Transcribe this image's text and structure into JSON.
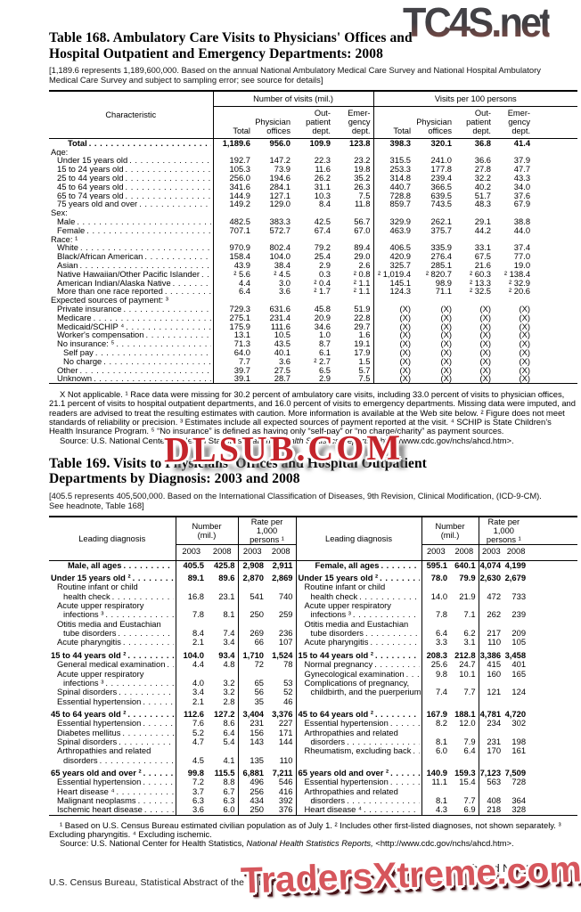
{
  "watermarks": {
    "top": "TC4S.net",
    "middle": "DLSUB.COM",
    "bottom": "TradersXtreme.com"
  },
  "colors": {
    "watermark_top_dark": "#3f3e42",
    "watermark_top_red": "#8a5a50",
    "watermark_mid": "#c4242b",
    "watermark_bottom": "#d6565c",
    "text": "#000000",
    "rule": "#000000"
  },
  "table168": {
    "title_line1": "Table 168. Ambulatory Care Visits to Physicians' Offices and",
    "title_line2": "Hospital Outpatient and Emergency Departments: 2008",
    "headnote": "[1,189.6 represents 1,189,600,000. Based on the annual National Ambulatory Medical Care Survey and National Hospital Ambulatory Medical Care Survey and subject to sampling error; see source for details]",
    "header": {
      "characteristic": "Characteristic",
      "group1": "Number of visits (mil.)",
      "group2": "Visits per 100 persons",
      "subcols": [
        "Total",
        "Physician\noffices",
        "Out-\npatient\ndept.",
        "Emer-\ngency\ndept."
      ]
    },
    "rows": [
      {
        "label": "Total",
        "indent": 3,
        "bold": true,
        "values": [
          "1,189.6",
          "956.0",
          "109.9",
          "123.8",
          "398.3",
          "320.1",
          "36.8",
          "41.4"
        ]
      },
      {
        "label": "Age:",
        "indent": 0,
        "section": true,
        "values": []
      },
      {
        "label": "Under 15 years old",
        "indent": 1,
        "values": [
          "192.7",
          "147.2",
          "22.3",
          "23.2",
          "315.5",
          "241.0",
          "36.6",
          "37.9"
        ]
      },
      {
        "label": "15 to 24 years old",
        "indent": 1,
        "values": [
          "105.3",
          "73.9",
          "11.6",
          "19.8",
          "253.3",
          "177.8",
          "27.8",
          "47.7"
        ]
      },
      {
        "label": "25 to 44 years old",
        "indent": 1,
        "values": [
          "256.0",
          "194.6",
          "26.2",
          "35.2",
          "314.8",
          "239.4",
          "32.2",
          "43.3"
        ]
      },
      {
        "label": "45 to 64 years old",
        "indent": 1,
        "values": [
          "341.6",
          "284.1",
          "31.1",
          "26.3",
          "440.7",
          "366.5",
          "40.2",
          "34.0"
        ]
      },
      {
        "label": "65 to 74 years old",
        "indent": 1,
        "values": [
          "144.9",
          "127.1",
          "10.3",
          "7.5",
          "728.8",
          "639.5",
          "51.7",
          "37.6"
        ]
      },
      {
        "label": "75 years old and over",
        "indent": 1,
        "values": [
          "149.2",
          "129.0",
          "8.4",
          "11.8",
          "859.7",
          "743.5",
          "48.3",
          "67.9"
        ]
      },
      {
        "label": "Sex:",
        "indent": 0,
        "section": true,
        "values": []
      },
      {
        "label": "Male",
        "indent": 1,
        "values": [
          "482.5",
          "383.3",
          "42.5",
          "56.7",
          "329.9",
          "262.1",
          "29.1",
          "38.8"
        ]
      },
      {
        "label": "Female",
        "indent": 1,
        "values": [
          "707.1",
          "572.7",
          "67.4",
          "67.0",
          "463.9",
          "375.7",
          "44.2",
          "44.0"
        ]
      },
      {
        "label": "Race: ¹",
        "indent": 0,
        "section": true,
        "values": []
      },
      {
        "label": "White",
        "indent": 1,
        "values": [
          "970.9",
          "802.4",
          "79.2",
          "89.4",
          "406.5",
          "335.9",
          "33.1",
          "37.4"
        ]
      },
      {
        "label": "Black/African American",
        "indent": 1,
        "values": [
          "158.4",
          "104.0",
          "25.4",
          "29.0",
          "420.9",
          "276.4",
          "67.5",
          "77.0"
        ]
      },
      {
        "label": "Asian",
        "indent": 1,
        "values": [
          "43.9",
          "38.4",
          "2.9",
          "2.6",
          "325.7",
          "285.1",
          "21.6",
          "19.0"
        ]
      },
      {
        "label": "Native Hawaiian/Other Pacific Islander",
        "indent": 1,
        "values": [
          "² 5.6",
          "² 4.5",
          "0.3",
          "² 0.8",
          "² 1,019.4",
          "² 820.7",
          "² 60.3",
          "² 138.4"
        ]
      },
      {
        "label": "American Indian/Alaska Native",
        "indent": 1,
        "values": [
          "4.4",
          "3.0",
          "² 0.4",
          "² 1.1",
          "145.1",
          "98.9",
          "² 13.3",
          "² 32.9"
        ]
      },
      {
        "label": "More than one race reported",
        "indent": 1,
        "values": [
          "6.4",
          "3.6",
          "² 1.7",
          "² 1.1",
          "124.3",
          "71.1",
          "² 32.5",
          "² 20.6"
        ]
      },
      {
        "label": "Expected sources of payment: ³",
        "indent": 0,
        "section": true,
        "values": []
      },
      {
        "label": "Private insurance",
        "indent": 1,
        "values": [
          "729.3",
          "631.6",
          "45.8",
          "51.9",
          "(X)",
          "(X)",
          "(X)",
          "(X)"
        ]
      },
      {
        "label": "Medicare",
        "indent": 1,
        "values": [
          "275.1",
          "231.4",
          "20.9",
          "22.8",
          "(X)",
          "(X)",
          "(X)",
          "(X)"
        ]
      },
      {
        "label": "Medicaid/SCHIP ⁴",
        "indent": 1,
        "values": [
          "175.9",
          "111.6",
          "34.6",
          "29.7",
          "(X)",
          "(X)",
          "(X)",
          "(X)"
        ]
      },
      {
        "label": "Worker's compensation",
        "indent": 1,
        "values": [
          "13.1",
          "10.5",
          "1.0",
          "1.6",
          "(X)",
          "(X)",
          "(X)",
          "(X)"
        ]
      },
      {
        "label": "No insurance: ⁵",
        "indent": 1,
        "values": [
          "71.3",
          "43.5",
          "8.7",
          "19.1",
          "(X)",
          "(X)",
          "(X)",
          "(X)"
        ]
      },
      {
        "label": "Self pay",
        "indent": 2,
        "values": [
          "64.0",
          "40.1",
          "6.1",
          "17.9",
          "(X)",
          "(X)",
          "(X)",
          "(X)"
        ]
      },
      {
        "label": "No charge",
        "indent": 2,
        "values": [
          "7.7",
          "3.6",
          "² 2.7",
          "1.5",
          "(X)",
          "(X)",
          "(X)",
          "(X)"
        ]
      },
      {
        "label": "Other",
        "indent": 1,
        "values": [
          "39.7",
          "27.5",
          "6.5",
          "5.7",
          "(X)",
          "(X)",
          "(X)",
          "(X)"
        ]
      },
      {
        "label": "Unknown",
        "indent": 1,
        "values": [
          "39.1",
          "28.7",
          "2.9",
          "7.5",
          "(X)",
          "(X)",
          "(X)",
          "(X)"
        ]
      }
    ],
    "footnote": "X Not applicable. ¹ Race data were missing for 30.2 percent of ambulatory care visits, including 33.0 percent of visits to physician offices, 21.1 percent of visits to hospital outpatient departments, and 16.0 percent of visits to emergency departments. Missing data were imputed, and readers are advised to treat the resulting estimates with caution. More information is available at the Web site below. ² Figure does not meet standards of reliability or precision. ³ Estimates include all expected sources of payment reported at the visit. ⁴ SCHIP is State Children’s Health Insurance Program. ⁵ “No insurance” is defined as having only “self-pay” or “no charge/charity” as payment sources.",
    "source_prefix": "Source: U.S. National Center for Health Statistics, ",
    "source_italic": "National Health Statistics Reports,",
    "source_suffix": " <http://www.cdc.gov/nchs/ahcd.htm>."
  },
  "table169": {
    "title_line1": "Table 169. Visits to Physicians' Offices and Hospital Outpatient",
    "title_line2": "Departments by Diagnosis: 2003 and 2008",
    "headnote": "[405.5 represents 405,500,000. Based on the International Classification of Diseases, 9th Revision, Clinical Modification, (ICD-9-CM). See headnote, Table 168]",
    "header": {
      "leading": "Leading diagnosis",
      "number": "Number\n(mil.)",
      "rate": "Rate per\n1,000\npersons ¹",
      "years": [
        "2003",
        "2008"
      ]
    },
    "rows": [
      {
        "l": {
          "t": "Male, all ages",
          "i": 3,
          "b": 1,
          "v": [
            "405.5",
            "425.8",
            "2,908",
            "2,911"
          ]
        },
        "r": {
          "t": "Female, all ages",
          "i": 3,
          "b": 1,
          "v": [
            "595.1",
            "640.1",
            "4,074",
            "4,199"
          ]
        }
      },
      {
        "gap": 1,
        "l": {
          "t": "Under 15 years old ²",
          "i": 0,
          "b": 1,
          "v": [
            "89.1",
            "89.6",
            "2,870",
            "2,869"
          ]
        },
        "r": {
          "t": "Under 15 years old ²",
          "i": 0,
          "b": 1,
          "v": [
            "78.0",
            "79.9",
            "2,630",
            "2,679"
          ]
        }
      },
      {
        "l": {
          "t": "Routine infant or child",
          "i": 1,
          "v": []
        },
        "r": {
          "t": "Routine infant or child",
          "i": 1,
          "v": []
        }
      },
      {
        "l": {
          "t": "health check",
          "i": 2,
          "v": [
            "16.8",
            "23.1",
            "541",
            "740"
          ]
        },
        "r": {
          "t": "health check",
          "i": 2,
          "v": [
            "14.0",
            "21.9",
            "472",
            "733"
          ]
        }
      },
      {
        "l": {
          "t": "Acute upper respiratory",
          "i": 1,
          "v": []
        },
        "r": {
          "t": "Acute upper respiratory",
          "i": 1,
          "v": []
        }
      },
      {
        "l": {
          "t": "infections ³",
          "i": 2,
          "v": [
            "7.8",
            "8.1",
            "250",
            "259"
          ]
        },
        "r": {
          "t": "infections ³",
          "i": 2,
          "v": [
            "7.8",
            "7.1",
            "262",
            "239"
          ]
        }
      },
      {
        "l": {
          "t": "Otitis media and Eustachian",
          "i": 1,
          "v": []
        },
        "r": {
          "t": "Otitis media and Eustachian",
          "i": 1,
          "v": []
        }
      },
      {
        "l": {
          "t": "tube disorders",
          "i": 2,
          "v": [
            "8.4",
            "7.4",
            "269",
            "236"
          ]
        },
        "r": {
          "t": "tube disorders",
          "i": 2,
          "v": [
            "6.4",
            "6.2",
            "217",
            "209"
          ]
        }
      },
      {
        "l": {
          "t": "Acute pharyngitis",
          "i": 1,
          "v": [
            "2.1",
            "3.4",
            "66",
            "107"
          ]
        },
        "r": {
          "t": "Acute pharyngitis",
          "i": 1,
          "v": [
            "3.3",
            "3.1",
            "110",
            "105"
          ]
        }
      },
      {
        "gap": 1,
        "l": {
          "t": "15 to 44 years old ²",
          "i": 0,
          "b": 1,
          "v": [
            "104.0",
            "93.4",
            "1,710",
            "1,524"
          ]
        },
        "r": {
          "t": "15 to 44 years old ²",
          "i": 0,
          "b": 1,
          "v": [
            "208.3",
            "212.8",
            "3,386",
            "3,458"
          ]
        }
      },
      {
        "l": {
          "t": "General medical examination",
          "i": 1,
          "v": [
            "4.4",
            "4.8",
            "72",
            "78"
          ]
        },
        "r": {
          "t": "Normal pregnancy",
          "i": 1,
          "v": [
            "25.6",
            "24.7",
            "415",
            "401"
          ]
        }
      },
      {
        "l": {
          "t": "Acute upper respiratory",
          "i": 1,
          "v": []
        },
        "r": {
          "t": "Gynecological examination",
          "i": 1,
          "v": [
            "9.8",
            "10.1",
            "160",
            "165"
          ]
        }
      },
      {
        "l": {
          "t": "infections ³",
          "i": 2,
          "v": [
            "4.0",
            "3.2",
            "65",
            "53"
          ]
        },
        "r": {
          "t": "Complications of pregnancy,",
          "i": 1,
          "v": []
        }
      },
      {
        "l": {
          "t": "Spinal disorders",
          "i": 1,
          "v": [
            "3.4",
            "3.2",
            "56",
            "52"
          ]
        },
        "r": {
          "t": "childbirth, and the puerperium",
          "i": 2,
          "v": [
            "7.4",
            "7.7",
            "121",
            "124"
          ]
        }
      },
      {
        "l": {
          "t": "Essential hypertension",
          "i": 1,
          "v": [
            "2.1",
            "2.8",
            "35",
            "46"
          ]
        },
        "r": {
          "t": "",
          "i": 1,
          "v": []
        }
      },
      {
        "gap": 1,
        "l": {
          "t": "45 to 64 years old ²",
          "i": 0,
          "b": 1,
          "v": [
            "112.6",
            "127.2",
            "3,404",
            "3,376"
          ]
        },
        "r": {
          "t": "45 to 64 years old ²",
          "i": 0,
          "b": 1,
          "v": [
            "167.9",
            "188.1",
            "4,781",
            "4,720"
          ]
        }
      },
      {
        "l": {
          "t": "Essential hypertension",
          "i": 1,
          "v": [
            "7.6",
            "8.6",
            "231",
            "227"
          ]
        },
        "r": {
          "t": "Essential hypertension",
          "i": 1,
          "v": [
            "8.2",
            "12.0",
            "234",
            "302"
          ]
        }
      },
      {
        "l": {
          "t": "Diabetes mellitus",
          "i": 1,
          "v": [
            "5.2",
            "6.4",
            "156",
            "171"
          ]
        },
        "r": {
          "t": "Arthropathies and related",
          "i": 1,
          "v": []
        }
      },
      {
        "l": {
          "t": "Spinal disorders",
          "i": 1,
          "v": [
            "4.7",
            "5.4",
            "143",
            "144"
          ]
        },
        "r": {
          "t": "disorders",
          "i": 2,
          "v": [
            "8.1",
            "7.9",
            "231",
            "198"
          ]
        }
      },
      {
        "l": {
          "t": "Arthropathies and related",
          "i": 1,
          "v": []
        },
        "r": {
          "t": "Rheumatism, excluding back",
          "i": 1,
          "v": [
            "6.0",
            "6.4",
            "170",
            "161"
          ]
        }
      },
      {
        "l": {
          "t": "disorders",
          "i": 2,
          "v": [
            "4.5",
            "4.1",
            "135",
            "110"
          ]
        },
        "r": {
          "t": "",
          "i": 1,
          "v": []
        }
      },
      {
        "gap": 1,
        "l": {
          "t": "65 years old and over ²",
          "i": 0,
          "b": 1,
          "v": [
            "99.8",
            "115.5",
            "6,881",
            "7,211"
          ]
        },
        "r": {
          "t": "65 years old and over ²",
          "i": 0,
          "b": 1,
          "v": [
            "140.9",
            "159.3",
            "7,123",
            "7,509"
          ]
        }
      },
      {
        "l": {
          "t": "Essential hypertension",
          "i": 1,
          "v": [
            "7.2",
            "8.8",
            "496",
            "546"
          ]
        },
        "r": {
          "t": "Essential hypertension",
          "i": 1,
          "v": [
            "11.1",
            "15.4",
            "563",
            "728"
          ]
        }
      },
      {
        "l": {
          "t": "Heart disease ⁴",
          "i": 1,
          "v": [
            "3.7",
            "6.7",
            "256",
            "416"
          ]
        },
        "r": {
          "t": "Arthropathies and related",
          "i": 1,
          "v": []
        }
      },
      {
        "l": {
          "t": "Malignant neoplasms",
          "i": 1,
          "v": [
            "6.3",
            "6.3",
            "434",
            "392"
          ]
        },
        "r": {
          "t": "disorders",
          "i": 2,
          "v": [
            "8.1",
            "7.7",
            "408",
            "364"
          ]
        }
      },
      {
        "l": {
          "t": "Ischemic heart disease",
          "i": 1,
          "v": [
            "3.6",
            "6.0",
            "250",
            "376"
          ]
        },
        "r": {
          "t": "Heart disease ⁴",
          "i": 1,
          "v": [
            "4.3",
            "6.9",
            "218",
            "328"
          ]
        }
      }
    ],
    "footnote": "¹ Based on U.S. Census Bureau estimated civilian population as of July 1. ² Includes other first-listed diagnoses, not shown separately. ³ Excluding pharyngitis. ⁴ Excluding ischemic.",
    "source_prefix": "Source: U.S. National Center for Health Statistics, ",
    "source_italic": "National Health Statistics Reports,",
    "source_suffix": " <http://www.cdc.gov/nchs/ahcd.htm>."
  },
  "footer": {
    "section": "Health and Nutrition",
    "page": "117",
    "census": "U.S. Census Bureau, Statistical Abstract of the United States: 2012"
  }
}
